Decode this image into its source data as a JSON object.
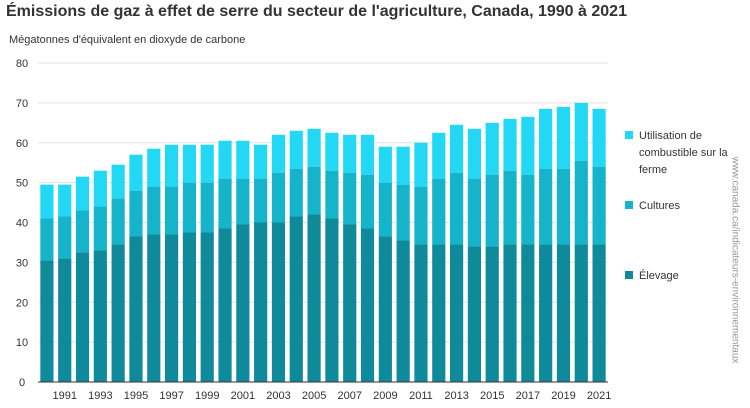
{
  "chart_data": {
    "type": "bar",
    "stacked": true,
    "title": "Émissions de gaz à effet de serre du secteur de l'agriculture, Canada, 1990 à 2021",
    "ylabel": "Mégatonnes d'équivalent en dioxyde de carbone",
    "xlabel": "",
    "ylim": [
      0,
      80
    ],
    "yticks": [
      0,
      10,
      20,
      30,
      40,
      50,
      60,
      70,
      80
    ],
    "grid": true,
    "legend_position": "right",
    "categories": [
      "1990",
      "1991",
      "1992",
      "1993",
      "1994",
      "1995",
      "1996",
      "1997",
      "1998",
      "1999",
      "2000",
      "2001",
      "2002",
      "2003",
      "2004",
      "2005",
      "2006",
      "2007",
      "2008",
      "2009",
      "2010",
      "2011",
      "2012",
      "2013",
      "2014",
      "2015",
      "2016",
      "2017",
      "2018",
      "2019",
      "2020",
      "2021"
    ],
    "xtick_labels": [
      "",
      "1991",
      "",
      "1993",
      "",
      "1995",
      "",
      "1997",
      "",
      "1999",
      "",
      "2001",
      "",
      "2003",
      "",
      "2005",
      "",
      "2007",
      "",
      "2009",
      "",
      "2011",
      "",
      "2013",
      "",
      "2015",
      "",
      "2017",
      "",
      "2019",
      "",
      "2021"
    ],
    "series": [
      {
        "name": "Élevage",
        "color": "#0f8a9a",
        "values": [
          30.5,
          31.0,
          32.5,
          33.0,
          34.5,
          36.5,
          37.0,
          37.0,
          37.5,
          37.5,
          38.5,
          39.5,
          40.0,
          40.0,
          41.5,
          42.0,
          41.0,
          39.5,
          38.5,
          36.5,
          35.5,
          34.5,
          34.5,
          34.5,
          34.0,
          34.0,
          34.5,
          34.5,
          34.5,
          34.5,
          34.5,
          34.5
        ]
      },
      {
        "name": "Cultures",
        "color": "#16b4cb",
        "values": [
          10.5,
          10.5,
          10.5,
          11.0,
          11.5,
          11.5,
          12.0,
          12.0,
          12.5,
          12.5,
          12.5,
          11.5,
          11.0,
          12.5,
          12.0,
          12.0,
          12.0,
          13.0,
          13.5,
          13.5,
          14.0,
          14.5,
          16.5,
          18.0,
          17.0,
          18.0,
          18.5,
          17.5,
          19.0,
          19.0,
          21.0,
          19.5
        ]
      },
      {
        "name": "Utilisation de combustible sur la ferme",
        "color": "#22d8f5",
        "values": [
          8.5,
          8.0,
          8.5,
          9.0,
          8.5,
          9.0,
          9.5,
          10.5,
          9.5,
          9.5,
          9.5,
          9.5,
          8.5,
          9.5,
          9.5,
          9.5,
          9.5,
          9.5,
          10.0,
          9.0,
          9.5,
          11.0,
          11.5,
          12.0,
          12.5,
          13.0,
          13.0,
          14.5,
          15.0,
          15.5,
          14.5,
          14.5
        ]
      }
    ]
  },
  "watermark": "www.canada.ca/indicateurs-environnementaux"
}
